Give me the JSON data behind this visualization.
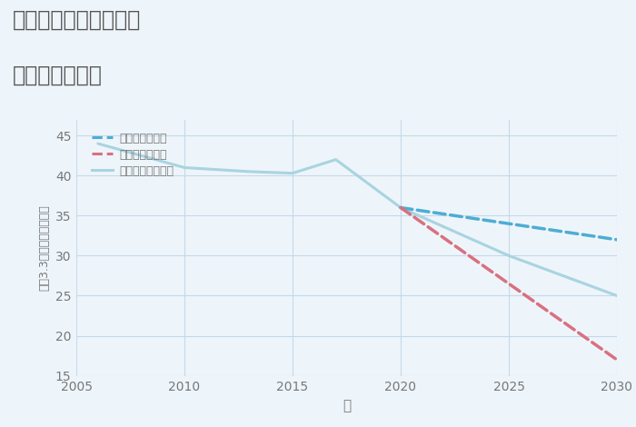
{
  "title_line1": "愛知県岡崎市大平町の",
  "title_line2": "土地の価格推移",
  "xlabel": "年",
  "ylabel": "坪（3.3㎡）単価（万円）",
  "ylim": [
    15,
    47
  ],
  "yticks": [
    15,
    20,
    25,
    30,
    35,
    40,
    45
  ],
  "xlim": [
    2005,
    2030
  ],
  "xticks": [
    2005,
    2010,
    2015,
    2020,
    2025,
    2030
  ],
  "background_color": "#eef5fa",
  "plot_bg_color": "#eef5fa",
  "series": [
    {
      "label": "グッドシナリオ",
      "color": "#4dadd4",
      "linewidth": 2.5,
      "linestyle": "--",
      "x": [
        2020,
        2025,
        2030
      ],
      "y": [
        36,
        34,
        32
      ]
    },
    {
      "label": "バッドシナリオ",
      "color": "#d97080",
      "linewidth": 2.5,
      "linestyle": "--",
      "x": [
        2020,
        2030
      ],
      "y": [
        36,
        17
      ]
    },
    {
      "label": "ノーマルシナリオ",
      "color": "#a8d4e0",
      "linewidth": 2.2,
      "linestyle": "-",
      "x": [
        2006,
        2010,
        2013,
        2015,
        2017,
        2020,
        2025,
        2030
      ],
      "y": [
        44,
        41,
        40.5,
        40.3,
        42,
        36,
        30,
        25
      ]
    }
  ],
  "title_color": "#555555",
  "grid_color": "#c5d8e8",
  "tick_color": "#777777",
  "legend_items": [
    {
      "label": "グッドシナリオ",
      "color": "#4dadd4",
      "linestyle": "--"
    },
    {
      "label": "バッドシナリオ",
      "color": "#d97080",
      "linestyle": "--"
    },
    {
      "label": "ノーマルシナリオ",
      "color": "#a8d4e0",
      "linestyle": "-"
    }
  ]
}
